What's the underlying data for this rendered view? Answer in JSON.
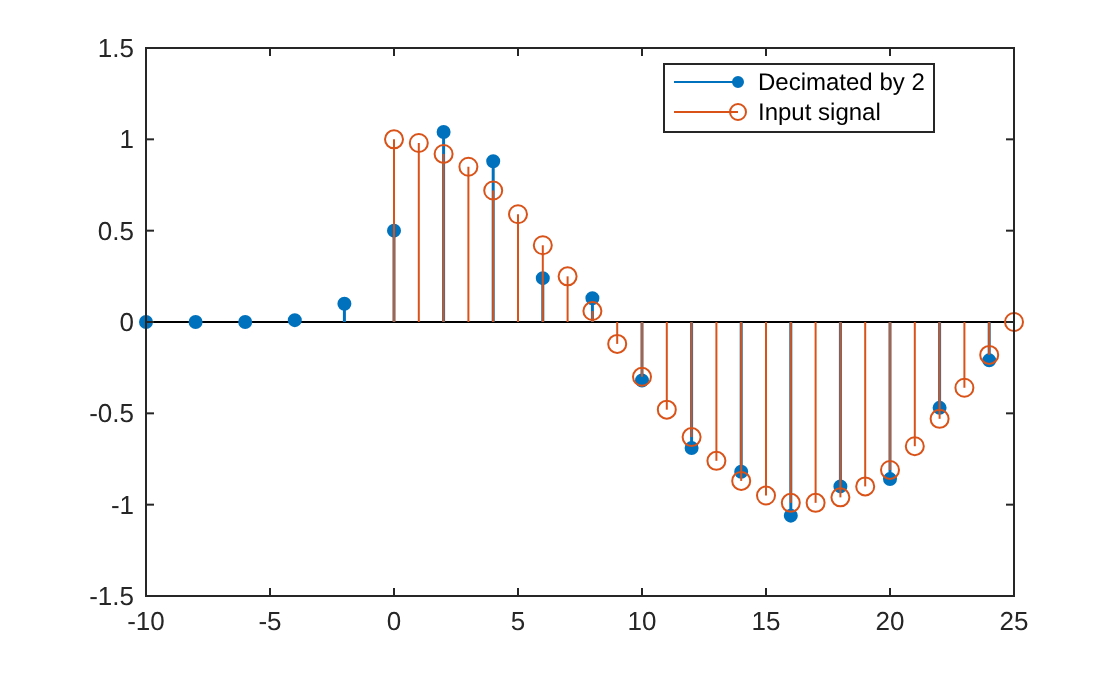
{
  "chart_data": {
    "type": "lollipop",
    "xlim": [
      -10,
      25
    ],
    "xticks": [
      -10,
      -5,
      0,
      5,
      10,
      15,
      20,
      25
    ],
    "ylim": [
      -1.5,
      1.5
    ],
    "yticks": [
      -1.5,
      -1,
      -0.5,
      0,
      0.5,
      1,
      1.5
    ],
    "legend": "top right",
    "marker": "circle",
    "ref_lines": [
      {
        "axis": "y",
        "value": 0,
        "color": "#000000"
      }
    ],
    "series": [
      {
        "name": "Decimated by 2",
        "color": "#0072bd",
        "x": [
          -10,
          -8,
          -6,
          -4,
          -2,
          0,
          2,
          4,
          6,
          8,
          10,
          12,
          14,
          16,
          18,
          20,
          22,
          24
        ],
        "values": [
          0,
          0,
          0,
          0.01,
          0.1,
          0.5,
          1.04,
          0.88,
          0.24,
          0.13,
          -0.32,
          -0.69,
          -0.82,
          -1.06,
          -0.9,
          -0.86,
          -0.47,
          -0.21
        ]
      },
      {
        "name": "Input signal",
        "color": "#d95319",
        "x": [
          0,
          1,
          2,
          3,
          4,
          5,
          6,
          7,
          8,
          9,
          10,
          11,
          12,
          13,
          14,
          15,
          16,
          17,
          18,
          19,
          20,
          21,
          22,
          23,
          24,
          25
        ],
        "values": [
          1,
          0.98,
          0.92,
          0.85,
          0.72,
          0.59,
          0.42,
          0.25,
          0.06,
          -0.12,
          -0.3,
          -0.48,
          -0.63,
          -0.76,
          -0.87,
          -0.95,
          -0.99,
          -0.99,
          -0.96,
          -0.9,
          -0.81,
          -0.68,
          -0.53,
          -0.36,
          -0.18,
          0
        ]
      }
    ]
  }
}
